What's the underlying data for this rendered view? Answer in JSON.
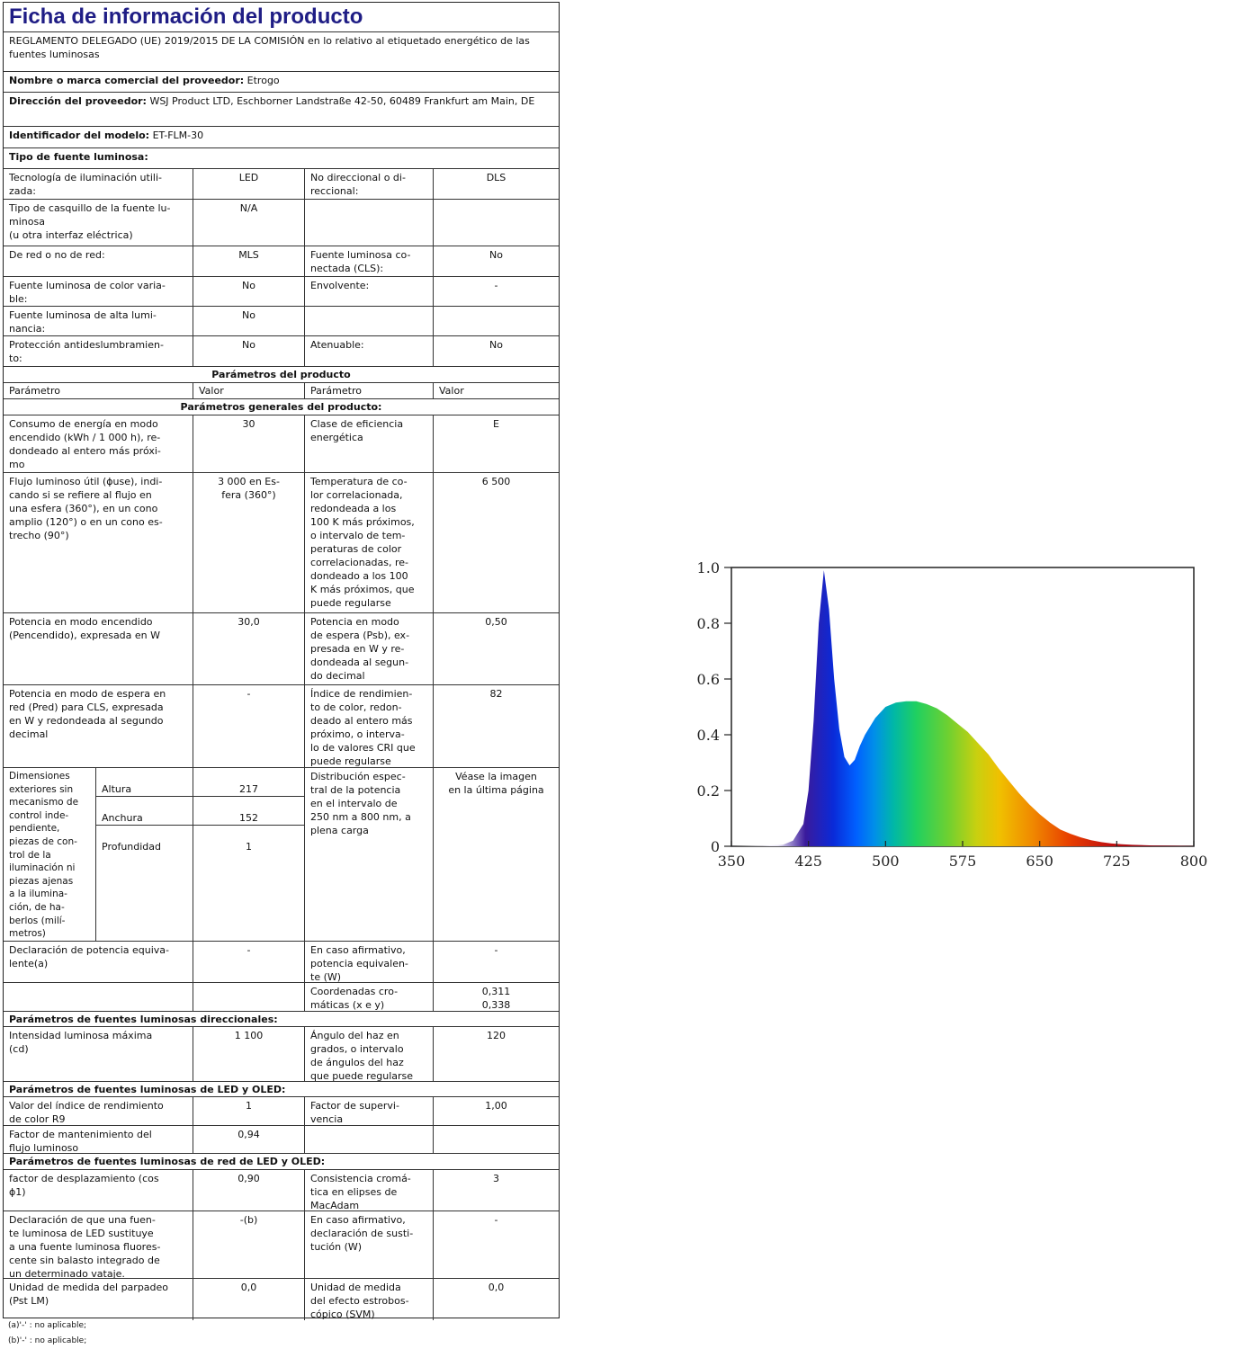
{
  "sheet": {
    "title": "Ficha de información del producto",
    "regulation": "REGLAMENTO DELEGADO (UE) 2019/2015 DE LA COMISIÓN en lo relativo al etiquetado energético de las fuentes luminosas",
    "supplier_label": "Nombre o marca comercial del proveedor:",
    "supplier_value": "Etrogo",
    "address_label": "Dirección del proveedor:",
    "address_value": "WSJ Product LTD, Eschborner Landstraße 42-50, 60489 Frankfurt am Main, DE",
    "model_label": "Identificador del modelo:",
    "model_value": "ET-FLM-30",
    "source_type_heading": "Tipo de fuente luminosa:"
  },
  "type_rows": [
    {
      "p1": "Tecnología de iluminación utili-\nzada:",
      "v1": "LED",
      "p2": "No direccional o di-\nreccional:",
      "v2": "DLS"
    },
    {
      "p1": "Tipo de casquillo de la fuente lu-\nminosa\n(u otra interfaz eléctrica)",
      "v1": "N/A",
      "p2": "",
      "v2": ""
    },
    {
      "p1": "De red o no de red:",
      "v1": "MLS",
      "p2": "Fuente luminosa co-\nnectada (CLS):",
      "v2": "No"
    },
    {
      "p1": "Fuente luminosa de color varia-\nble:",
      "v1": "No",
      "p2": "Envolvente:",
      "v2": "-"
    },
    {
      "p1": "Fuente luminosa de alta lumi-\nnancia:",
      "v1": "No",
      "p2": "",
      "v2": ""
    },
    {
      "p1": "Protección antideslumbramien-\nto:",
      "v1": "No",
      "p2": "Atenuable:",
      "v2": "No"
    }
  ],
  "product_params_heading": "Parámetros del producto",
  "header_row": {
    "p1": "Parámetro",
    "v1": "Valor",
    "p2": "Parámetro",
    "v2": "Valor"
  },
  "general_heading": "Parámetros generales del producto:",
  "general_rows": [
    {
      "p1": "Consumo de energía en modo\nencendido (kWh / 1 000 h), re-\ndondeado al entero más próxi-\nmo",
      "v1": "30",
      "p2": "Clase de eficiencia\nenergética",
      "v2": "E"
    },
    {
      "p1": "Flujo luminoso útil (ɸuse), indi-\ncando si se refiere al flujo en\nuna esfera (360°), en un cono\namplio (120°) o en un cono es-\ntrecho (90°)",
      "v1": "3 000 en Es-\nfera (360°)",
      "p2": "Temperatura de co-\nlor correlacionada,\nredondeada a los\n100 K más próximos,\no intervalo de tem-\nperaturas de color\ncorrelacionadas, re-\ndondeado a los 100\nK más próximos, que\npuede regularse",
      "v2": "6 500"
    },
    {
      "p1": "Potencia en modo encendido\n(Pencendido), expresada en W",
      "v1": "30,0",
      "p2": "Potencia en modo\nde espera (Psb), ex-\npresada en W y re-\ndondeada al segun-\ndo decimal",
      "v2": "0,50"
    },
    {
      "p1": "Potencia en modo de espera en\nred (Pred) para CLS, expresada\nen W y redondeada al segundo\ndecimal",
      "v1": "-",
      "p2": "Índice de rendimien-\nto de color, redon-\ndeado al entero más\npróximo, o interva-\nlo de valores CRI que\npuede regularse",
      "v2": "82"
    }
  ],
  "dimensions": {
    "label": "Dimensiones\nexteriores sin\nmecanismo de\ncontrol inde-\npendiente,\npiezas de con-\ntrol de la\niluminación ni\npiezas ajenas\na la ilumina-\nción, de ha-\nberlos (milí-\nmetros)",
    "sub_labels": [
      "Altura",
      "Anchura",
      "Profundidad"
    ],
    "sub_values": [
      "217",
      "152",
      "1"
    ],
    "p2": "Distribución espec-\ntral de la potencia\nen el intervalo de\n250 nm a 800 nm, a\nplena carga",
    "v2": "Véase la imagen\nen la última página"
  },
  "equiv_row": {
    "p1": "Declaración de potencia equiva-\nlente(a)",
    "v1": "-",
    "p2": "En caso afirmativo,\npotencia equivalen-\nte (W)",
    "v2": "-"
  },
  "chroma_row": {
    "p1": "",
    "v1": "",
    "p2": "Coordenadas cro-\nmáticas (x e y)",
    "v2": "0,311\n0,338"
  },
  "directional_heading": "Parámetros de fuentes luminosas direccionales:",
  "directional_row": {
    "p1": "Intensidad luminosa máxima\n(cd)",
    "v1": "1 100",
    "p2": "Ángulo del haz en\ngrados, o intervalo\nde ángulos del haz\nque puede regularse",
    "v2": "120"
  },
  "led_heading": "Parámetros de fuentes luminosas de LED y OLED:",
  "led_rows": [
    {
      "p1": "Valor del índice de rendimiento\nde color R9",
      "v1": "1",
      "p2": "Factor de supervi-\nvencia",
      "v2": "1,00"
    },
    {
      "p1": "Factor de mantenimiento del\nflujo luminoso",
      "v1": "0,94",
      "p2": "",
      "v2": ""
    }
  ],
  "mains_heading": "Parámetros de fuentes luminosas de red de LED y OLED:",
  "mains_rows": [
    {
      "p1": "factor de desplazamiento (cos\nɸ1)",
      "v1": "0,90",
      "p2": "Consistencia cromá-\ntica en elipses de\nMacAdam",
      "v2": "3"
    },
    {
      "p1": "Declaración de que una fuen-\nte luminosa de LED sustituye\na una fuente luminosa fluores-\ncente sin balasto integrado de\nun determinado vataje.",
      "v1": "-(b)",
      "p2": "En caso afirmativo,\ndeclaración de susti-\ntución (W)",
      "v2": "-"
    },
    {
      "p1": "Unidad de medida del parpadeo\n(Pst LM)",
      "v1": "0,0",
      "p2": "Unidad de medida\ndel efecto estrobos-\ncópico (SVM)",
      "v2": "0,0"
    }
  ],
  "notes": [
    "(a)'-' : no aplicable;",
    "(b)'-' : no aplicable;"
  ],
  "chart_data": {
    "type": "area",
    "title": "",
    "xlabel": "",
    "ylabel": "",
    "xlim": [
      350,
      800
    ],
    "ylim": [
      0,
      1.0
    ],
    "x_ticks": [
      "350",
      "425",
      "500",
      "575",
      "650",
      "725",
      "800"
    ],
    "y_ticks": [
      "0",
      "0.2",
      "0.4",
      "0.6",
      "0.8",
      "1.0"
    ],
    "grid": false,
    "fill": "visible spectrum gradient",
    "x": [
      350,
      380,
      400,
      410,
      420,
      425,
      430,
      435,
      440,
      445,
      450,
      455,
      460,
      465,
      470,
      475,
      480,
      490,
      500,
      510,
      520,
      530,
      540,
      550,
      560,
      570,
      580,
      590,
      600,
      610,
      620,
      630,
      640,
      650,
      660,
      670,
      680,
      690,
      700,
      710,
      720,
      730,
      740,
      760,
      780,
      800
    ],
    "values": [
      0,
      0.002,
      0.005,
      0.02,
      0.08,
      0.2,
      0.45,
      0.8,
      0.99,
      0.85,
      0.6,
      0.42,
      0.32,
      0.29,
      0.31,
      0.36,
      0.4,
      0.46,
      0.5,
      0.515,
      0.52,
      0.52,
      0.51,
      0.495,
      0.47,
      0.44,
      0.41,
      0.37,
      0.33,
      0.28,
      0.235,
      0.19,
      0.15,
      0.115,
      0.085,
      0.06,
      0.045,
      0.032,
      0.022,
      0.015,
      0.01,
      0.007,
      0.005,
      0.003,
      0.002,
      0.001
    ]
  }
}
